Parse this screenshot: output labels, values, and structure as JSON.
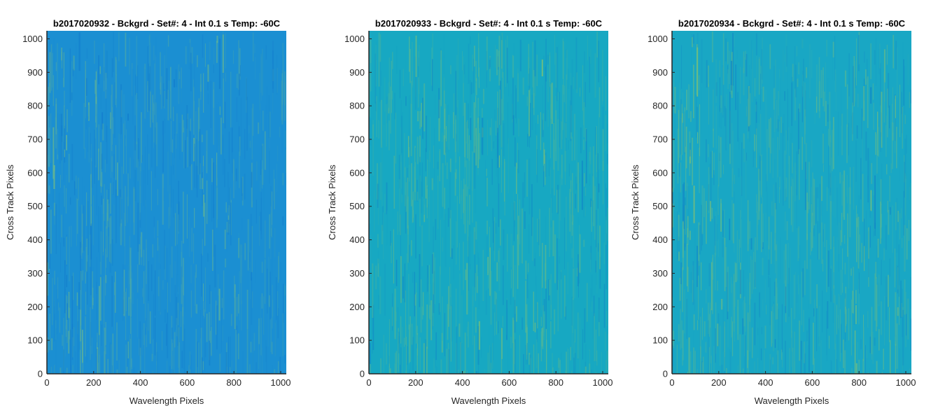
{
  "chart_data": [
    {
      "type": "heatmap",
      "title": "b2017020932 - Bckgrd - Set#: 4 - Int 0.1 s Temp: -60C",
      "xlabel": "Wavelength Pixels",
      "ylabel": "Cross Track Pixels",
      "xlim": [
        0,
        1024
      ],
      "ylim": [
        0,
        1024
      ],
      "xticks": [
        0,
        200,
        400,
        600,
        800,
        1000
      ],
      "yticks": [
        0,
        100,
        200,
        300,
        400,
        500,
        600,
        700,
        800,
        900,
        1000
      ],
      "colormap": "parula",
      "base_color": "#1b8fd2",
      "highlight_color": "#7ec27c",
      "warm_bands_x": [
        30,
        210,
        700
      ]
    },
    {
      "type": "heatmap",
      "title": "b2017020933 - Bckgrd - Set#: 4 - Int 0.1 s Temp: -60C",
      "xlabel": "Wavelength Pixels",
      "ylabel": "Cross Track Pixels",
      "xlim": [
        0,
        1024
      ],
      "ylim": [
        0,
        1024
      ],
      "xticks": [
        0,
        200,
        400,
        600,
        800,
        1000
      ],
      "yticks": [
        0,
        100,
        200,
        300,
        400,
        500,
        600,
        700,
        800,
        900,
        1000
      ],
      "colormap": "parula",
      "base_color": "#17a8c2",
      "highlight_color": "#8cc46a",
      "warm_bands_x": [
        230,
        520,
        700
      ]
    },
    {
      "type": "heatmap",
      "title": "b2017020934 - Bckgrd - Set#: 4 - Int 0.1 s Temp: -60C",
      "xlabel": "Wavelength Pixels",
      "ylabel": "Cross Track Pixels",
      "xlim": [
        0,
        1024
      ],
      "ylim": [
        0,
        1024
      ],
      "xticks": [
        0,
        200,
        400,
        600,
        800,
        1000
      ],
      "yticks": [
        0,
        100,
        200,
        300,
        400,
        500,
        600,
        700,
        800,
        900,
        1000
      ],
      "colormap": "parula",
      "base_color": "#19a7c4",
      "highlight_color": "#9cc85e",
      "warm_bands_x": [
        80,
        840
      ]
    }
  ]
}
